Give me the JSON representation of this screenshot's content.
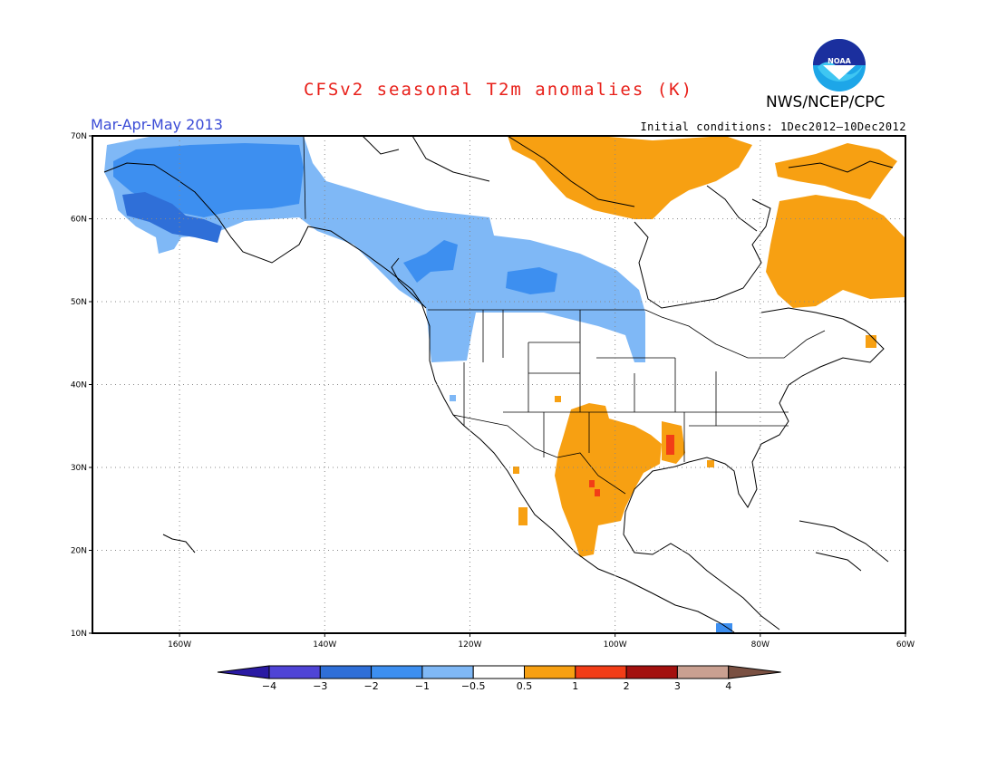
{
  "title": "CFSv2 seasonal T2m anomalies (K)",
  "season_label": "Mar-Apr-May 2013",
  "initial_conditions": "Initial conditions: 1Dec2012–10Dec2012",
  "agency": "NWS/NCEP/CPC",
  "logo_text": "NOAA",
  "map": {
    "lat_range": [
      10,
      70
    ],
    "lon_range": [
      -172,
      -60
    ],
    "lat_ticks": [
      {
        "value": 70,
        "label": "70N"
      },
      {
        "value": 60,
        "label": "60N"
      },
      {
        "value": 50,
        "label": "50N"
      },
      {
        "value": 40,
        "label": "40N"
      },
      {
        "value": 30,
        "label": "30N"
      },
      {
        "value": 20,
        "label": "20N"
      },
      {
        "value": 10,
        "label": "10N"
      }
    ],
    "lon_ticks": [
      {
        "value": -160,
        "label": "160W"
      },
      {
        "value": -140,
        "label": "140W"
      },
      {
        "value": -120,
        "label": "120W"
      },
      {
        "value": -100,
        "label": "100W"
      },
      {
        "value": -80,
        "label": "80W"
      },
      {
        "value": -60,
        "label": "60W"
      }
    ],
    "grid_lines": true
  },
  "colorbar": {
    "colors": [
      "#2a1aa3",
      "#4f44d6",
      "#2f6fd8",
      "#3d8ff0",
      "#7fb8f6",
      "#ffffff",
      "#f7a012",
      "#f23d17",
      "#a3110f",
      "#c9a091",
      "#7a5042"
    ],
    "labels": [
      "−4",
      "−3",
      "−2",
      "−1",
      "−0.5",
      "0.5",
      "1",
      "2",
      "3",
      "4"
    ]
  }
}
